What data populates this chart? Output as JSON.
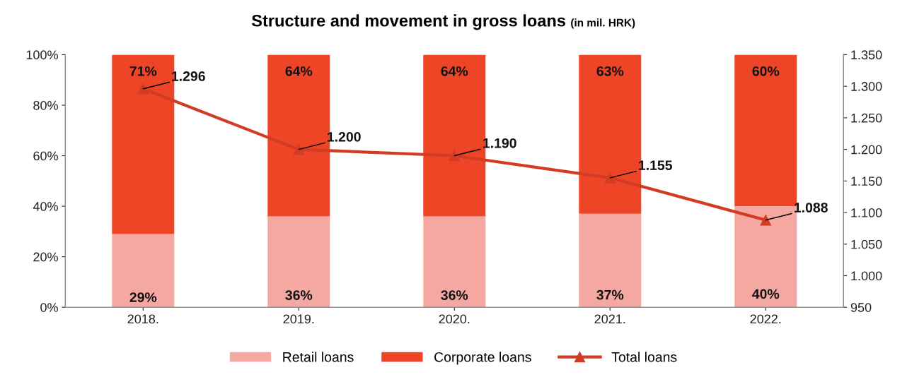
{
  "chart_data": {
    "type": "bar",
    "title": "Structure and movement in gross loans",
    "subtitle": "(in mil. HRK)",
    "categories": [
      "2018.",
      "2019.",
      "2020.",
      "2021.",
      "2022."
    ],
    "stacked": true,
    "grid": false,
    "legend": "bottom",
    "ylim": [
      0,
      100
    ],
    "yticks": [
      {
        "value": 0,
        "label": "0%"
      },
      {
        "value": 20,
        "label": "20%"
      },
      {
        "value": 40,
        "label": "40%"
      },
      {
        "value": 60,
        "label": "60%"
      },
      {
        "value": 80,
        "label": "80%"
      },
      {
        "value": 100,
        "label": "100%"
      }
    ],
    "y2lim": [
      950,
      1350
    ],
    "y2ticks": [
      {
        "value": 950,
        "label": "950"
      },
      {
        "value": 1000,
        "label": "1.000"
      },
      {
        "value": 1050,
        "label": "1.050"
      },
      {
        "value": 1100,
        "label": "1.100"
      },
      {
        "value": 1150,
        "label": "1.150"
      },
      {
        "value": 1200,
        "label": "1.200"
      },
      {
        "value": 1250,
        "label": "1.250"
      },
      {
        "value": 1300,
        "label": "1.300"
      },
      {
        "value": 1350,
        "label": "1.350"
      }
    ],
    "series": [
      {
        "name": "Retail loans",
        "color": "#f4a8a1",
        "values": [
          29,
          36,
          36,
          37,
          40
        ],
        "value_labels": [
          "29%",
          "36%",
          "36%",
          "37%",
          "40%"
        ]
      },
      {
        "name": "Corporate loans",
        "color": "#ee4527",
        "values": [
          71,
          64,
          64,
          63,
          60
        ],
        "value_labels": [
          "71%",
          "64%",
          "64%",
          "63%",
          "60%"
        ]
      },
      {
        "name": "Total loans",
        "type": "line",
        "axis": "y2",
        "color": "#d23b24",
        "marker": "triangle",
        "line_style": "solid",
        "values": [
          1296,
          1200,
          1190,
          1155,
          1088
        ],
        "value_labels": [
          "1.296",
          "1.200",
          "1.190",
          "1.155",
          "1.088"
        ]
      }
    ]
  }
}
